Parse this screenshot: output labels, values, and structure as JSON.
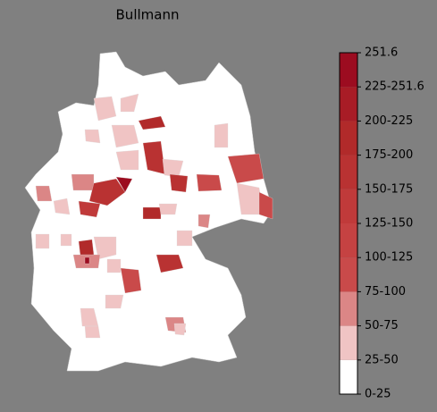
{
  "map": {
    "title": "Bullmann",
    "colorbar": {
      "labels": [
        "0-25",
        "25-50",
        "50-75",
        "75-100",
        "100-125",
        "125-150",
        "150-175",
        "175-200",
        "200-225",
        "225-251.6",
        "251.6"
      ],
      "colors": [
        "#ffffff",
        "#f0c4c4",
        "#db8686",
        "#c94a4a",
        "#c54242",
        "#c03a3a",
        "#b93232",
        "#b12a2a",
        "#a81c26",
        "#9c0c20"
      ]
    }
  }
}
